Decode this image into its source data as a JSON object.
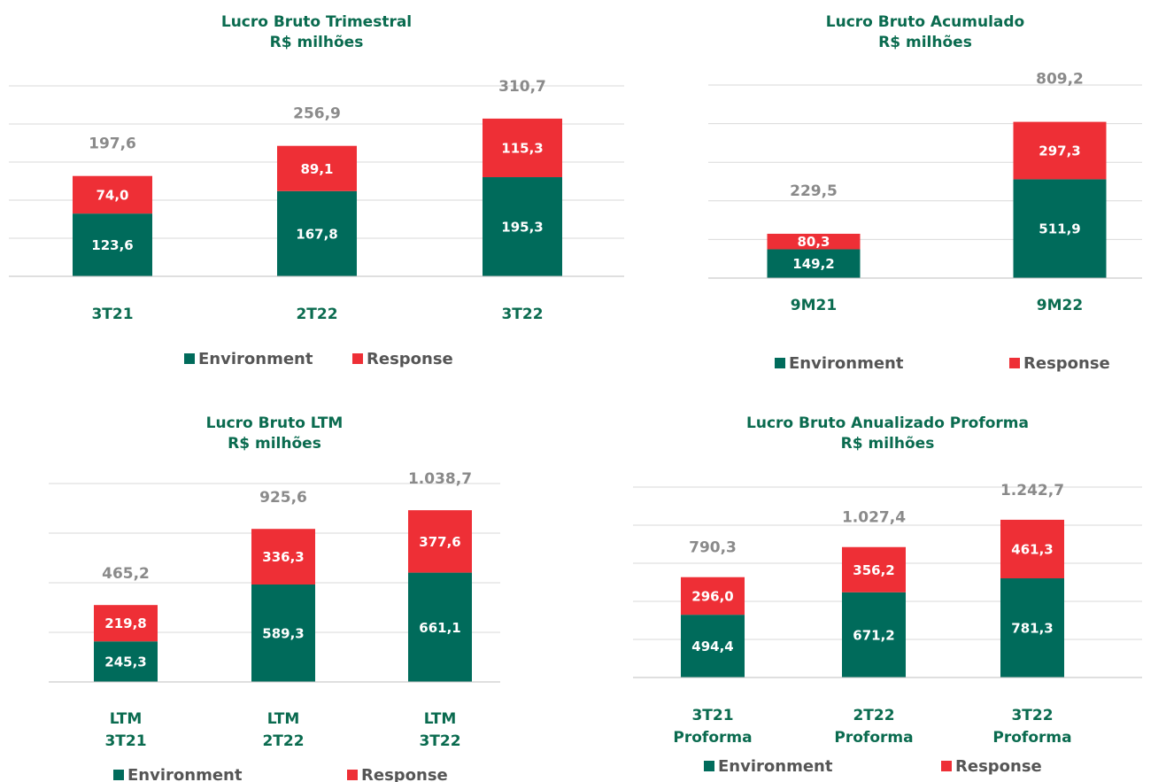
{
  "chart_data": [
    {
      "type": "stacked_bar",
      "title": "Lucro Bruto Trimestral",
      "subtitle": "R$ milhões",
      "categories": [
        "3T21",
        "2T22",
        "3T22"
      ],
      "series": [
        {
          "name": "Environment",
          "color": "#006b5b",
          "values": [
            123.6,
            167.8,
            195.3
          ],
          "value_labels": [
            "123,6",
            "167,8",
            "195,3"
          ]
        },
        {
          "name": "Response",
          "color": "#ee2f36",
          "values": [
            74.0,
            89.1,
            115.3
          ],
          "value_labels": [
            "74,0",
            "89,1",
            "115,3"
          ]
        }
      ],
      "totals": [
        197.6,
        256.9,
        310.7
      ],
      "total_labels": [
        "197,6",
        "256,9",
        "310,7"
      ],
      "ylim": [
        0,
        375
      ],
      "yticks": [
        0,
        75,
        150,
        225,
        300,
        375
      ],
      "grid": true
    },
    {
      "type": "stacked_bar",
      "title": "Lucro Bruto Acumulado",
      "subtitle": "R$ milhões",
      "categories": [
        "9M21",
        "9M22"
      ],
      "series": [
        {
          "name": "Environment",
          "color": "#006b5b",
          "values": [
            149.2,
            511.9
          ],
          "value_labels": [
            "149,2",
            "511,9"
          ]
        },
        {
          "name": "Response",
          "color": "#ee2f36",
          "values": [
            80.3,
            297.3
          ],
          "value_labels": [
            "80,3",
            "297,3"
          ]
        }
      ],
      "totals": [
        229.5,
        809.2
      ],
      "total_labels": [
        "229,5",
        "809,2"
      ],
      "ylim": [
        0,
        1000
      ],
      "yticks": [
        0,
        200,
        400,
        600,
        800,
        1000
      ],
      "grid": true
    },
    {
      "type": "stacked_bar",
      "title": "Lucro Bruto LTM",
      "subtitle": "R$ milhões",
      "categories": [
        "LTM 3T21",
        "LTM 2T22",
        "LTM 3T22"
      ],
      "series": [
        {
          "name": "Environment",
          "color": "#006b5b",
          "values": [
            245.3,
            589.3,
            661.1
          ],
          "value_labels": [
            "245,3",
            "589,3",
            "661,1"
          ]
        },
        {
          "name": "Response",
          "color": "#ee2f36",
          "values": [
            219.8,
            336.3,
            377.6
          ],
          "value_labels": [
            "219,8",
            "336,3",
            "377,6"
          ]
        }
      ],
      "totals": [
        465.2,
        925.6,
        1038.7
      ],
      "total_labels": [
        "465,2",
        "925,6",
        "1.038,7"
      ],
      "ylim": [
        0,
        1200
      ],
      "yticks": [
        0,
        300,
        600,
        900,
        1200
      ],
      "grid": true
    },
    {
      "type": "stacked_bar",
      "title": "Lucro Bruto Anualizado Proforma",
      "subtitle": "R$ milhões",
      "categories": [
        "3T21 Proforma",
        "2T22 Proforma",
        "3T22 Proforma"
      ],
      "series": [
        {
          "name": "Environment",
          "color": "#006b5b",
          "values": [
            494.4,
            671.2,
            781.3
          ],
          "value_labels": [
            "494,4",
            "671,2",
            "781,3"
          ]
        },
        {
          "name": "Response",
          "color": "#ee2f36",
          "values": [
            296.0,
            356.2,
            461.3
          ],
          "value_labels": [
            "296,0",
            "356,2",
            "461,3"
          ]
        }
      ],
      "totals": [
        790.3,
        1027.4,
        1242.7
      ],
      "total_labels": [
        "790,3",
        "1.027,4",
        "1.242,7"
      ],
      "ylim": [
        0,
        1500
      ],
      "yticks": [
        0,
        300,
        600,
        900,
        1200,
        1500
      ],
      "grid": true
    }
  ]
}
